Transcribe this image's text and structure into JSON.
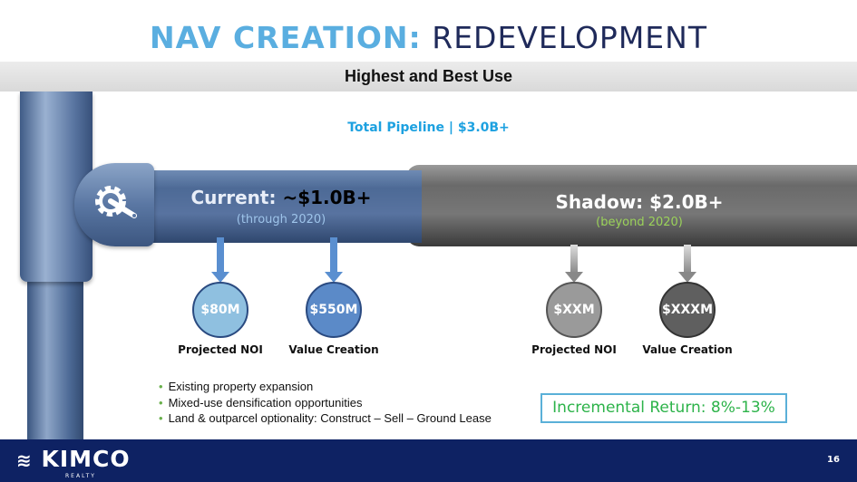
{
  "title": {
    "part1": "NAV CREATION:",
    "part2": "REDEVELOPMENT"
  },
  "subtitle": "Highest and Best Use",
  "pipeline": "Total Pipeline  |  $3.0B+",
  "current": {
    "label": "Current:",
    "value": "~$1.0B+",
    "period": "(through 2020)",
    "noi": "$80M",
    "value_creation": "$550M",
    "noi_label": "Projected NOI",
    "vc_label": "Value Creation"
  },
  "shadow": {
    "label": "Shadow:",
    "value": "$2.0B+",
    "period": "(beyond 2020)",
    "noi": "$XXM",
    "value_creation": "$XXXM",
    "noi_label": "Projected NOI",
    "vc_label": "Value Creation"
  },
  "bullets": [
    "Existing property expansion",
    "Mixed-use densification opportunities",
    "Land & outparcel optionality: Construct – Sell – Ground Lease"
  ],
  "incremental_return": "Incremental Return:  8%-13%",
  "footer": {
    "logo": "KIMCO",
    "logo_sub": "REALTY",
    "page": "16"
  },
  "icons": {
    "pipe_joint": "gear-wrench-icon"
  },
  "colors": {
    "accent": "#5aaee0",
    "navy": "#0e2263",
    "green": "#2db34a"
  }
}
